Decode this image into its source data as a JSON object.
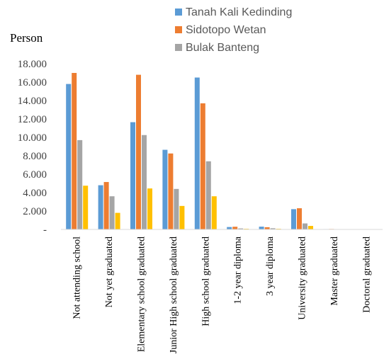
{
  "chart_data": {
    "type": "bar",
    "ylabel": "Person",
    "ylim": [
      0,
      18000
    ],
    "yticks": [
      0,
      2000,
      4000,
      6000,
      8000,
      10000,
      12000,
      14000,
      16000,
      18000
    ],
    "ytick_labels": [
      "-",
      "2.000",
      "4.000",
      "6.000",
      "8.000",
      "10.000",
      "12.000",
      "14.000",
      "16.000",
      "18.000"
    ],
    "grid": false,
    "legend_position": "top-right",
    "categories": [
      "Not attending school",
      "Not yet graduated",
      "Elementary school graduated",
      "Junior High school graduated",
      "High school graduated",
      "1-2 year diploma",
      "3 year diploma",
      "University graduated",
      "Master graduated",
      "Doctoral graduated"
    ],
    "series": [
      {
        "name": "Tanah Kali Kedinding",
        "color": "#5B9BD5",
        "values": [
          15800,
          4800,
          11650,
          8650,
          16500,
          260,
          300,
          2200,
          40,
          5
        ]
      },
      {
        "name": "Sidotopo Wetan",
        "color": "#ED7D31",
        "values": [
          17000,
          5150,
          16800,
          8250,
          13700,
          290,
          240,
          2300,
          50,
          5
        ]
      },
      {
        "name": "Bulak Banteng",
        "color": "#A5A5A5",
        "values": [
          9700,
          3600,
          10250,
          4400,
          7400,
          110,
          130,
          650,
          20,
          3
        ]
      },
      {
        "color": "#FFC000",
        "values": [
          4750,
          1800,
          4450,
          2550,
          3600,
          70,
          70,
          380,
          15,
          2
        ]
      }
    ]
  }
}
